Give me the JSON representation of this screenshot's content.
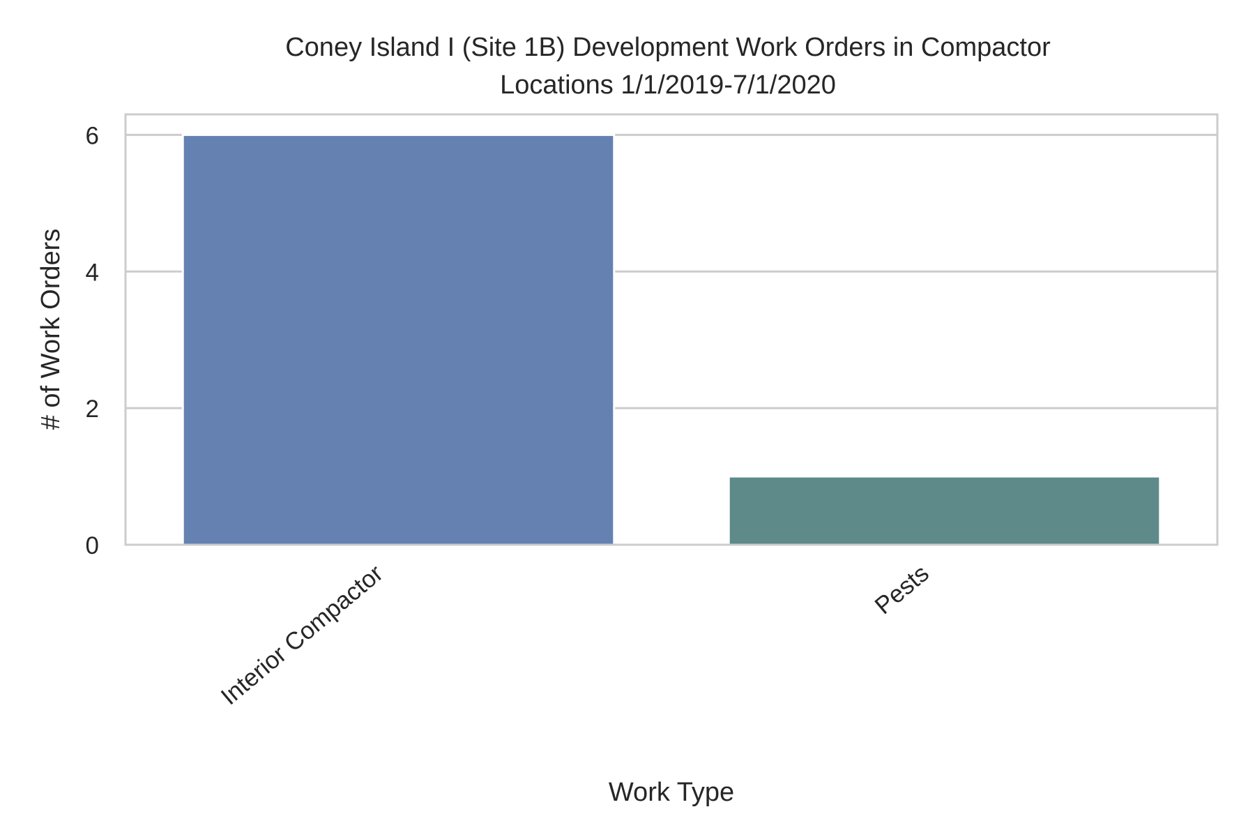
{
  "chart_data": {
    "type": "bar",
    "title_lines": [
      "Coney Island I (Site 1B) Development Work Orders in Compactor",
      "Locations 1/1/2019-7/1/2020"
    ],
    "xlabel": "Work Type",
    "ylabel": "# of Work Orders",
    "categories": [
      "Interior Compactor",
      "Pests"
    ],
    "values": [
      6,
      1
    ],
    "bar_colors": [
      "#6581b2",
      "#5e8a89"
    ],
    "ylim": [
      0,
      6.3
    ],
    "yticks": [
      0,
      2,
      4,
      6
    ],
    "grid": "horizontal",
    "legend": "none"
  }
}
